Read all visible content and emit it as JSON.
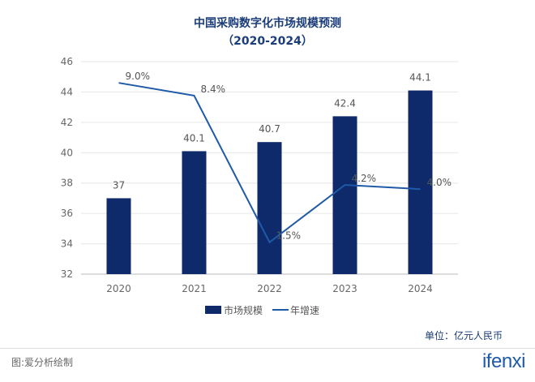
{
  "chart_data": {
    "type": "bar",
    "title": "中国采购数字化市场规模预测",
    "subtitle": "（2020-2024）",
    "categories": [
      "2020",
      "2021",
      "2022",
      "2023",
      "2024"
    ],
    "series": [
      {
        "name": "市场规模",
        "type": "bar",
        "values": [
          37,
          40.1,
          40.7,
          42.4,
          44.1
        ],
        "labels": [
          "37",
          "40.1",
          "40.7",
          "42.4",
          "44.1"
        ],
        "color": "#0f2a6b"
      },
      {
        "name": "年增速",
        "type": "line",
        "values": [
          9.0,
          8.4,
          1.5,
          4.2,
          4.0
        ],
        "labels": [
          "9.0%",
          "8.4%",
          "1.5%",
          "4.2%",
          "4.0%"
        ],
        "color": "#1f5aa8",
        "secondary_axis_range": [
          0,
          10
        ]
      }
    ],
    "yticks": [
      "32",
      "34",
      "36",
      "38",
      "40",
      "42",
      "44",
      "46"
    ],
    "ylim": [
      32,
      46
    ],
    "grid": true,
    "legend": "bottom",
    "unit": "单位：亿元人民币"
  },
  "footer": {
    "source": "图:爱分析绘制",
    "logo": "ifenxi"
  }
}
